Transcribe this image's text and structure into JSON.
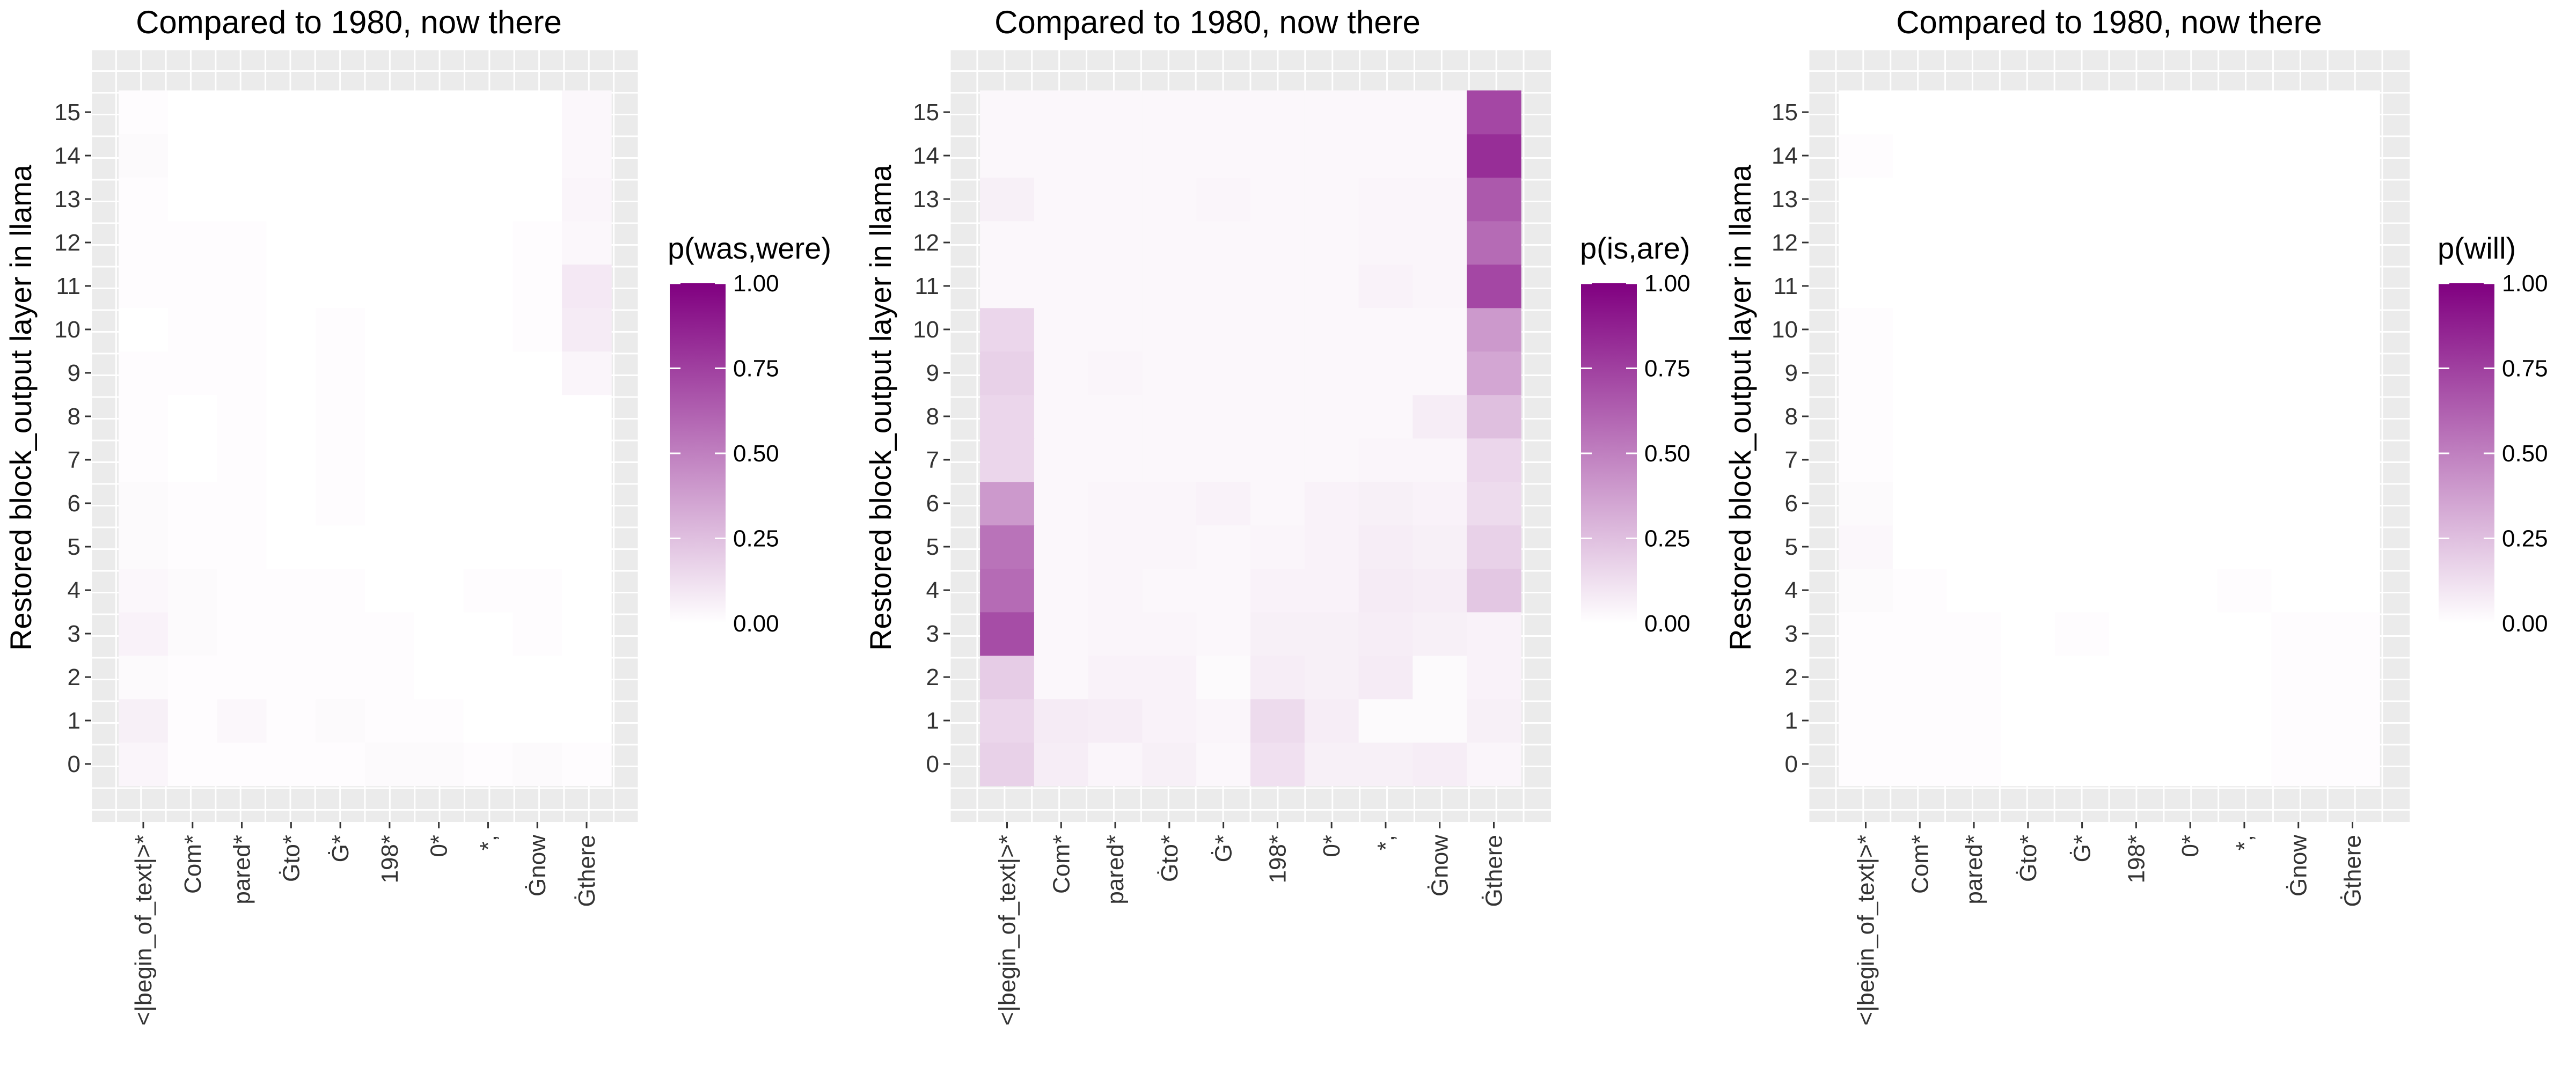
{
  "colors": {
    "low": "#ffffff",
    "high": "#800080",
    "panel_bg": "#ebebeb",
    "grid": "#ffffff"
  },
  "chart_data": [
    {
      "type": "heatmap",
      "title": "Compared to 1980, now there",
      "xlabel": "",
      "ylabel": "Restored block_output layer in llama",
      "legend_title": "p(was,were)",
      "legend_ticks": [
        "1.00",
        "0.75",
        "0.50",
        "0.25",
        "0.00"
      ],
      "x_categories": [
        "<|begin_of_text|>*",
        "Com*",
        "pared*",
        "Ġto*",
        "Ġ*",
        "198*",
        "0*",
        "*,",
        "Ġnow",
        "Ġthere"
      ],
      "y_categories": [
        "0",
        "1",
        "2",
        "3",
        "4",
        "5",
        "6",
        "7",
        "8",
        "9",
        "10",
        "11",
        "12",
        "13",
        "14",
        "15"
      ],
      "value_range": [
        0,
        1
      ],
      "grid": true,
      "legend_position": "right",
      "values": [
        [
          0.04,
          0.01,
          0.01,
          0.01,
          0.01,
          0.02,
          0.02,
          0.01,
          0.02,
          0.01
        ],
        [
          0.06,
          0.01,
          0.03,
          0.01,
          0.02,
          0.01,
          0.01,
          0.0,
          0.0,
          0.0
        ],
        [
          0.02,
          0.01,
          0.01,
          0.01,
          0.01,
          0.01,
          0.0,
          0.0,
          0.0,
          0.0
        ],
        [
          0.05,
          0.02,
          0.01,
          0.01,
          0.01,
          0.01,
          0.0,
          0.0,
          0.01,
          0.0
        ],
        [
          0.03,
          0.02,
          0.01,
          0.01,
          0.01,
          0.0,
          0.0,
          0.01,
          0.01,
          0.0
        ],
        [
          0.02,
          0.01,
          0.01,
          0.0,
          0.0,
          0.0,
          0.0,
          0.0,
          0.0,
          0.0
        ],
        [
          0.02,
          0.01,
          0.01,
          0.0,
          0.01,
          0.0,
          0.0,
          0.0,
          0.0,
          0.0
        ],
        [
          0.01,
          0.0,
          0.01,
          0.0,
          0.01,
          0.0,
          0.0,
          0.0,
          0.0,
          0.0
        ],
        [
          0.01,
          0.0,
          0.01,
          0.0,
          0.01,
          0.0,
          0.0,
          0.0,
          0.0,
          0.0
        ],
        [
          0.01,
          0.01,
          0.01,
          0.0,
          0.01,
          0.0,
          0.0,
          0.0,
          0.0,
          0.04
        ],
        [
          0.0,
          0.01,
          0.01,
          0.0,
          0.01,
          0.0,
          0.0,
          0.0,
          0.01,
          0.08
        ],
        [
          0.01,
          0.01,
          0.01,
          0.0,
          0.0,
          0.0,
          0.0,
          0.0,
          0.01,
          0.09
        ],
        [
          0.01,
          0.01,
          0.01,
          0.0,
          0.0,
          0.0,
          0.0,
          0.0,
          0.01,
          0.03
        ],
        [
          0.01,
          0.0,
          0.0,
          0.0,
          0.0,
          0.0,
          0.0,
          0.0,
          0.0,
          0.04
        ],
        [
          0.02,
          0.0,
          0.0,
          0.0,
          0.0,
          0.0,
          0.0,
          0.0,
          0.0,
          0.03
        ],
        [
          0.01,
          0.0,
          0.0,
          0.0,
          0.0,
          0.0,
          0.0,
          0.0,
          0.0,
          0.03
        ]
      ]
    },
    {
      "type": "heatmap",
      "title": "Compared to 1980, now there",
      "xlabel": "",
      "ylabel": "Restored block_output layer in llama",
      "legend_title": "p(is,are)",
      "legend_ticks": [
        "1.00",
        "0.75",
        "0.50",
        "0.25",
        "0.00"
      ],
      "x_categories": [
        "<|begin_of_text|>*",
        "Com*",
        "pared*",
        "Ġto*",
        "Ġ*",
        "198*",
        "0*",
        "*,",
        "Ġnow",
        "Ġthere"
      ],
      "y_categories": [
        "0",
        "1",
        "2",
        "3",
        "4",
        "5",
        "6",
        "7",
        "8",
        "9",
        "10",
        "11",
        "12",
        "13",
        "14",
        "15"
      ],
      "value_range": [
        0,
        1
      ],
      "grid": true,
      "legend_position": "right",
      "values": [
        [
          0.18,
          0.07,
          0.04,
          0.06,
          0.03,
          0.12,
          0.06,
          0.06,
          0.07,
          0.04
        ],
        [
          0.16,
          0.08,
          0.07,
          0.05,
          0.04,
          0.14,
          0.07,
          0.02,
          0.02,
          0.06
        ],
        [
          0.2,
          0.03,
          0.05,
          0.05,
          0.02,
          0.07,
          0.06,
          0.08,
          0.02,
          0.05
        ],
        [
          0.7,
          0.03,
          0.04,
          0.04,
          0.03,
          0.06,
          0.06,
          0.07,
          0.06,
          0.05
        ],
        [
          0.58,
          0.03,
          0.04,
          0.03,
          0.03,
          0.05,
          0.05,
          0.08,
          0.07,
          0.22
        ],
        [
          0.55,
          0.03,
          0.04,
          0.04,
          0.03,
          0.04,
          0.05,
          0.07,
          0.06,
          0.18
        ],
        [
          0.4,
          0.03,
          0.04,
          0.04,
          0.05,
          0.03,
          0.05,
          0.06,
          0.05,
          0.14
        ],
        [
          0.16,
          0.03,
          0.03,
          0.03,
          0.03,
          0.03,
          0.03,
          0.04,
          0.04,
          0.16
        ],
        [
          0.16,
          0.03,
          0.03,
          0.03,
          0.03,
          0.03,
          0.03,
          0.03,
          0.07,
          0.25
        ],
        [
          0.18,
          0.03,
          0.04,
          0.03,
          0.03,
          0.03,
          0.03,
          0.03,
          0.03,
          0.35
        ],
        [
          0.16,
          0.03,
          0.03,
          0.03,
          0.03,
          0.03,
          0.03,
          0.03,
          0.03,
          0.4
        ],
        [
          0.03,
          0.03,
          0.03,
          0.03,
          0.03,
          0.03,
          0.03,
          0.05,
          0.04,
          0.72
        ],
        [
          0.03,
          0.03,
          0.03,
          0.03,
          0.03,
          0.03,
          0.03,
          0.04,
          0.04,
          0.58
        ],
        [
          0.06,
          0.03,
          0.03,
          0.03,
          0.04,
          0.03,
          0.03,
          0.04,
          0.04,
          0.65
        ],
        [
          0.03,
          0.03,
          0.03,
          0.03,
          0.03,
          0.03,
          0.03,
          0.03,
          0.03,
          0.82
        ],
        [
          0.03,
          0.03,
          0.03,
          0.03,
          0.03,
          0.03,
          0.03,
          0.03,
          0.03,
          0.72
        ]
      ]
    },
    {
      "type": "heatmap",
      "title": "Compared to 1980, now there",
      "xlabel": "",
      "ylabel": "Restored block_output layer in llama",
      "legend_title": "p(will)",
      "legend_ticks": [
        "1.00",
        "0.75",
        "0.50",
        "0.25",
        "0.00"
      ],
      "x_categories": [
        "<|begin_of_text|>*",
        "Com*",
        "pared*",
        "Ġto*",
        "Ġ*",
        "198*",
        "0*",
        "*,",
        "Ġnow",
        "Ġthere"
      ],
      "y_categories": [
        "0",
        "1",
        "2",
        "3",
        "4",
        "5",
        "6",
        "7",
        "8",
        "9",
        "10",
        "11",
        "12",
        "13",
        "14",
        "15"
      ],
      "value_range": [
        0,
        1
      ],
      "grid": true,
      "legend_position": "right",
      "values": [
        [
          0.01,
          0.01,
          0.01,
          0.0,
          0.0,
          0.0,
          0.0,
          0.0,
          0.01,
          0.01
        ],
        [
          0.01,
          0.01,
          0.01,
          0.0,
          0.0,
          0.0,
          0.0,
          0.0,
          0.01,
          0.01
        ],
        [
          0.01,
          0.01,
          0.01,
          0.0,
          0.0,
          0.0,
          0.0,
          0.0,
          0.01,
          0.01
        ],
        [
          0.01,
          0.01,
          0.01,
          0.0,
          0.01,
          0.0,
          0.0,
          0.0,
          0.01,
          0.01
        ],
        [
          0.02,
          0.01,
          0.0,
          0.0,
          0.0,
          0.0,
          0.0,
          0.01,
          0.0,
          0.0
        ],
        [
          0.03,
          0.0,
          0.0,
          0.0,
          0.0,
          0.0,
          0.0,
          0.0,
          0.0,
          0.0
        ],
        [
          0.02,
          0.0,
          0.0,
          0.0,
          0.0,
          0.0,
          0.0,
          0.0,
          0.0,
          0.0
        ],
        [
          0.01,
          0.0,
          0.0,
          0.0,
          0.0,
          0.0,
          0.0,
          0.0,
          0.0,
          0.0
        ],
        [
          0.01,
          0.0,
          0.0,
          0.0,
          0.0,
          0.0,
          0.0,
          0.0,
          0.0,
          0.0
        ],
        [
          0.01,
          0.0,
          0.0,
          0.0,
          0.0,
          0.0,
          0.0,
          0.0,
          0.0,
          0.0
        ],
        [
          0.01,
          0.0,
          0.0,
          0.0,
          0.0,
          0.0,
          0.0,
          0.0,
          0.0,
          0.0
        ],
        [
          0.0,
          0.0,
          0.0,
          0.0,
          0.0,
          0.0,
          0.0,
          0.0,
          0.0,
          0.0
        ],
        [
          0.0,
          0.0,
          0.0,
          0.0,
          0.0,
          0.0,
          0.0,
          0.0,
          0.0,
          0.0
        ],
        [
          0.0,
          0.0,
          0.0,
          0.0,
          0.0,
          0.0,
          0.0,
          0.0,
          0.0,
          0.0
        ],
        [
          0.01,
          0.0,
          0.0,
          0.0,
          0.0,
          0.0,
          0.0,
          0.0,
          0.0,
          0.0
        ],
        [
          0.0,
          0.0,
          0.0,
          0.0,
          0.0,
          0.0,
          0.0,
          0.0,
          0.0,
          0.0
        ]
      ]
    }
  ]
}
